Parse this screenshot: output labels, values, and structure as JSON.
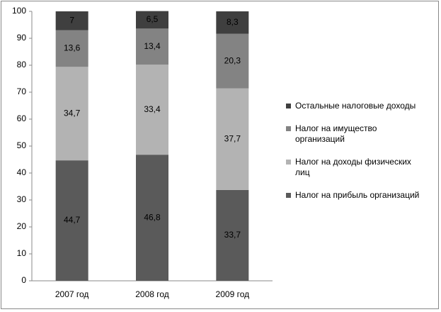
{
  "chart_data": {
    "type": "stacked_bar",
    "categories": [
      "2007 год",
      "2008 год",
      "2009 год"
    ],
    "series": [
      {
        "name": "Налог на прибыль организаций",
        "color": "#5a5a5a",
        "values": [
          44.7,
          46.8,
          33.7
        ],
        "value_labels": [
          "44,7",
          "46,8",
          "33,7"
        ]
      },
      {
        "name": "Налог на доходы физических лиц",
        "color": "#b3b3b3",
        "values": [
          34.7,
          33.4,
          37.7
        ],
        "value_labels": [
          "34,7",
          "33,4",
          "37,7"
        ]
      },
      {
        "name": "Налог на имущество организаций",
        "color": "#838383",
        "values": [
          13.6,
          13.4,
          20.3
        ],
        "value_labels": [
          "13,6",
          "13,4",
          "20,3"
        ]
      },
      {
        "name": "Остальные налоговые доходы",
        "color": "#3f3f3f",
        "values": [
          7,
          6.5,
          8.3
        ],
        "value_labels": [
          "7",
          "6,5",
          "8,3"
        ]
      }
    ],
    "ylim": [
      0,
      100
    ],
    "yticks": [
      0,
      10,
      20,
      30,
      40,
      50,
      60,
      70,
      80,
      90,
      100
    ],
    "grid": false,
    "legend": "right"
  }
}
